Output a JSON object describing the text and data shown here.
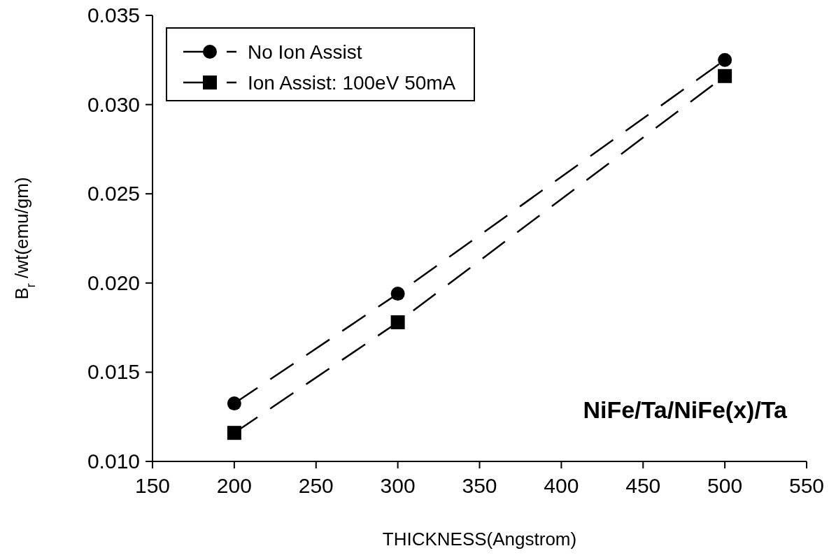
{
  "chart_data": {
    "type": "line",
    "xlabel": "THICKNESS(Angstrom)",
    "ylabel": "B$_{r}$ /wt(emu/gm)",
    "x": [
      200,
      300,
      500
    ],
    "series": [
      {
        "name": "No Ion Assist",
        "color": "#000000",
        "marker": "circle",
        "values": [
          0.01325,
          0.0194,
          0.0325
        ]
      },
      {
        "name": "Ion Assist: 100eV 50mA",
        "color": "#000000",
        "marker": "square",
        "values": [
          0.0116,
          0.0178,
          0.0316
        ]
      }
    ],
    "xlim": [
      150,
      550
    ],
    "xticks": [
      150,
      200,
      250,
      300,
      350,
      400,
      450,
      500,
      550
    ],
    "ylim": [
      0.01,
      0.035
    ],
    "yticks": [
      {
        "value": 0.01,
        "label": "0.010"
      },
      {
        "value": 0.015,
        "label": "0.015"
      },
      {
        "value": 0.02,
        "label": "0.020"
      },
      {
        "value": 0.025,
        "label": "0.025"
      },
      {
        "value": 0.03,
        "label": "0.030"
      },
      {
        "value": 0.035,
        "label": "0.035"
      }
    ],
    "line_style": "dashed",
    "legend": "top left",
    "grid": false,
    "annotations": [
      "NiFe/Ta/NiFe(x)/Ta"
    ]
  }
}
